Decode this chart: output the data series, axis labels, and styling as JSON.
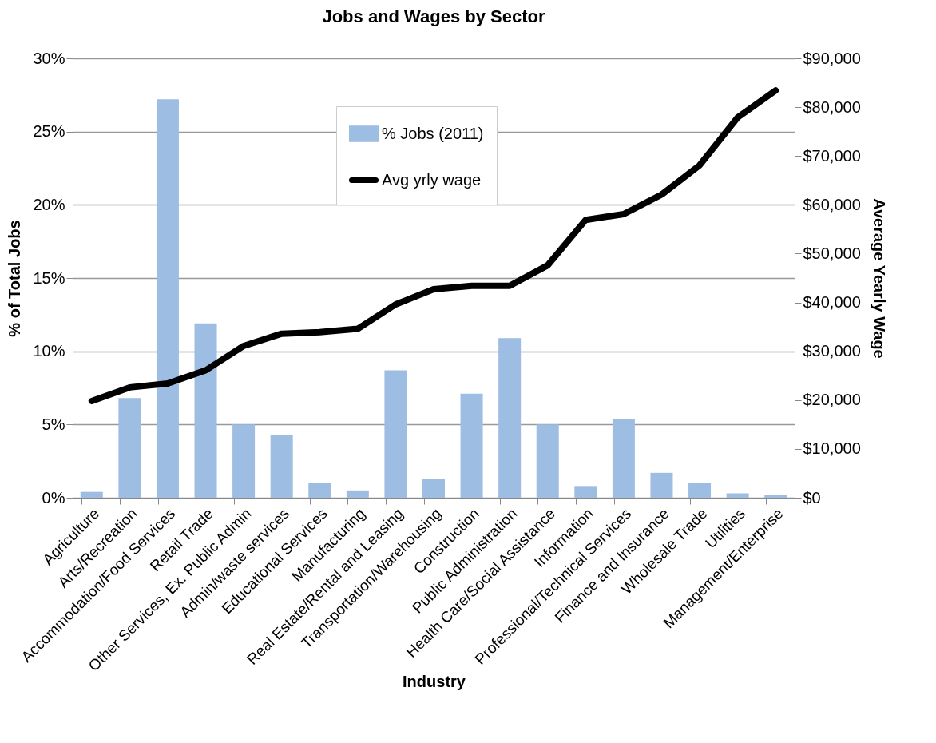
{
  "chart_data": {
    "type": "bar",
    "title": "Jobs and Wages by Sector",
    "xlabel": "Industry",
    "ylabel": "% of Total Jobs",
    "y2label": "Average Yearly Wage",
    "categories": [
      "Agriculture",
      "Arts/Recreation",
      "Accommodation/Food Services",
      "Retail Trade",
      "Other Services, Ex. Public Admin",
      "Admin/waste services",
      "Educational Services",
      "Manufacturing",
      "Real Estate/Rental and Leasing",
      "Transportation/Warehousing",
      "Construction",
      "Public Administration",
      "Health Care/Social Assistance",
      "Information",
      "Professional/Technical Services",
      "Finance and Insurance",
      "Wholesale Trade",
      "Utilities",
      "Management/Enterprise"
    ],
    "series": [
      {
        "name": "% Jobs (2011)",
        "color": "#9dbde3",
        "values": [
          0.4,
          6.8,
          27.2,
          11.9,
          5.0,
          4.3,
          1.0,
          0.5,
          8.7,
          1.3,
          7.1,
          10.9,
          5.0,
          0.8,
          5.4,
          1.7,
          1.0,
          0.3,
          0.2
        ]
      },
      {
        "name": "Avg yrly wage",
        "type": "line",
        "axis": "y2",
        "color": "#000000",
        "values": [
          19800,
          22600,
          23400,
          26100,
          31100,
          33600,
          33900,
          34600,
          39600,
          42700,
          43400,
          43400,
          47600,
          56900,
          58100,
          62100,
          68100,
          77900,
          83400
        ]
      }
    ],
    "ylim": [
      0,
      30
    ],
    "yticks": [
      {
        "value": 0,
        "label": "0%"
      },
      {
        "value": 5,
        "label": "5%"
      },
      {
        "value": 10,
        "label": "10%"
      },
      {
        "value": 15,
        "label": "15%"
      },
      {
        "value": 20,
        "label": "20%"
      },
      {
        "value": 25,
        "label": "25%"
      },
      {
        "value": 30,
        "label": "30%"
      }
    ],
    "y2lim": [
      0,
      90000
    ],
    "y2ticks": [
      {
        "value": 0,
        "label": "$0"
      },
      {
        "value": 10000,
        "label": "$10,000"
      },
      {
        "value": 20000,
        "label": "$20,000"
      },
      {
        "value": 30000,
        "label": "$30,000"
      },
      {
        "value": 40000,
        "label": "$40,000"
      },
      {
        "value": 50000,
        "label": "$50,000"
      },
      {
        "value": 60000,
        "label": "$60,000"
      },
      {
        "value": 70000,
        "label": "$70,000"
      },
      {
        "value": 80000,
        "label": "$80,000"
      },
      {
        "value": 90000,
        "label": "$90,000"
      }
    ],
    "grid": "y",
    "legend": "top"
  }
}
